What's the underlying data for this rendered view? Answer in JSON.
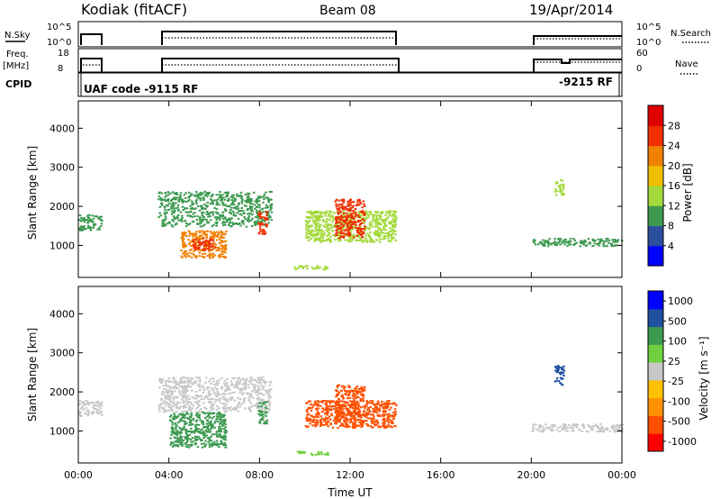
{
  "header": {
    "station": "Kodiak (fitACF)",
    "beam": "Beam 08",
    "date": "19/Apr/2014"
  },
  "panels": {
    "nsky": {
      "label": "N.Sky",
      "right_label": "N.Search",
      "ticks_left": [
        "10^5",
        "10^0"
      ],
      "ticks_right": [
        "10^5",
        "10^0"
      ]
    },
    "freq": {
      "label": "Freq.",
      "unit": "[MHz]",
      "right_label": "Nave",
      "ticks_left": [
        "18",
        "8"
      ],
      "ticks_right": [
        "60",
        "0"
      ]
    },
    "cpid": {
      "label": "CPID",
      "text_1": "UAF code -9115 RF",
      "text_2": "-9215 RF"
    }
  },
  "colors": {
    "power": [
      "#0000ff",
      "#2b4f9e",
      "#3d9a50",
      "#a3d93a",
      "#f0c000",
      "#f08000",
      "#f03000",
      "#e00000"
    ],
    "velocity": [
      "#ff0000",
      "#ff5000",
      "#ff9000",
      "#ffc000",
      "#c8c8c8",
      "#70d040",
      "#3c9a50",
      "#2050a0",
      "#0000ff"
    ]
  },
  "chart_data": [
    {
      "type": "heatmap",
      "name": "power",
      "ylabel": "Slant Range [km]",
      "yticks": [
        1000,
        2000,
        3000,
        4000
      ],
      "ylim": [
        180,
        4700
      ],
      "xticks": [
        "00:00",
        "04:00",
        "08:00",
        "12:00",
        "16:00",
        "20:00",
        "00:00"
      ],
      "xlim_hours": [
        0,
        24
      ],
      "colorbar": {
        "label": "Power [dB]",
        "ticks": [
          "28",
          "24",
          "20",
          "16",
          "12",
          "8",
          "4"
        ],
        "range": [
          0,
          30
        ]
      },
      "regions": [
        {
          "t": [
            0.0,
            1.0
          ],
          "r": [
            1400,
            1800
          ],
          "level": 8
        },
        {
          "t": [
            3.5,
            8.5
          ],
          "r": [
            1500,
            2400
          ],
          "level": 8
        },
        {
          "t": [
            4.5,
            6.5
          ],
          "r": [
            700,
            1400
          ],
          "level": 20
        },
        {
          "t": [
            5.0,
            6.0
          ],
          "r": [
            900,
            1200
          ],
          "level": 26
        },
        {
          "t": [
            7.9,
            8.3
          ],
          "r": [
            1300,
            1900
          ],
          "level": 24
        },
        {
          "t": [
            9.5,
            11.0
          ],
          "r": [
            400,
            500
          ],
          "level": 12
        },
        {
          "t": [
            10.0,
            14.0
          ],
          "r": [
            1100,
            1900
          ],
          "level": 14
        },
        {
          "t": [
            11.3,
            12.6
          ],
          "r": [
            1200,
            2200
          ],
          "level": 24
        },
        {
          "t": [
            20.0,
            24.0
          ],
          "r": [
            1000,
            1200
          ],
          "level": 8
        },
        {
          "t": [
            21.0,
            21.4
          ],
          "r": [
            2300,
            2700
          ],
          "level": 14
        }
      ]
    },
    {
      "type": "heatmap",
      "name": "velocity",
      "ylabel": "Slant Range [km]",
      "yticks": [
        1000,
        2000,
        3000,
        4000
      ],
      "ylim": [
        180,
        4700
      ],
      "xticks": [
        "00:00",
        "04:00",
        "08:00",
        "12:00",
        "16:00",
        "20:00",
        "00:00"
      ],
      "xlim_hours": [
        0,
        24
      ],
      "xlabel": "Time UT",
      "colorbar": {
        "label": "Velocity [m s⁻¹]",
        "ticks": [
          "1000",
          "500",
          "100",
          "25",
          "-25",
          "-100",
          "-500",
          "-1000"
        ],
        "range": [
          -1000,
          1000
        ]
      },
      "regions": [
        {
          "t": [
            0.0,
            1.0
          ],
          "r": [
            1400,
            1800
          ],
          "velocity": 0
        },
        {
          "t": [
            3.5,
            8.5
          ],
          "r": [
            1500,
            2400
          ],
          "velocity": 0
        },
        {
          "t": [
            4.0,
            6.5
          ],
          "r": [
            600,
            1500
          ],
          "velocity": 150
        },
        {
          "t": [
            7.9,
            8.3
          ],
          "r": [
            1200,
            1800
          ],
          "velocity": 200
        },
        {
          "t": [
            9.5,
            11.0
          ],
          "r": [
            400,
            500
          ],
          "velocity": 100
        },
        {
          "t": [
            10.0,
            14.0
          ],
          "r": [
            1100,
            1800
          ],
          "velocity": -200
        },
        {
          "t": [
            11.3,
            12.6
          ],
          "r": [
            1300,
            2200
          ],
          "velocity": -300
        },
        {
          "t": [
            20.0,
            24.0
          ],
          "r": [
            1000,
            1200
          ],
          "velocity": 0
        },
        {
          "t": [
            21.0,
            21.4
          ],
          "r": [
            2200,
            2700
          ],
          "velocity": 600
        }
      ]
    }
  ]
}
